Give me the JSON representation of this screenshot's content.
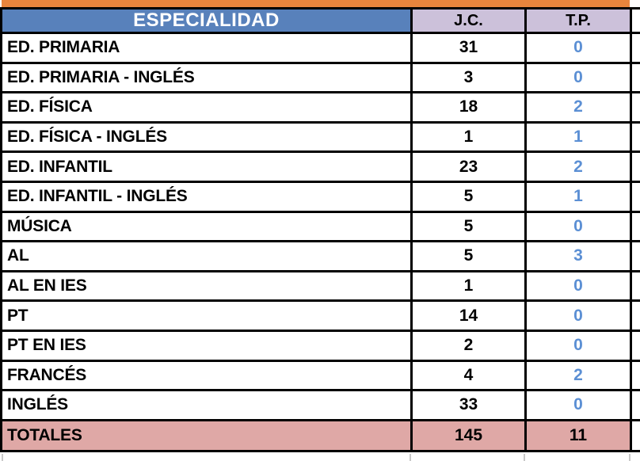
{
  "table": {
    "header": {
      "especialidad": "ESPECIALIDAD",
      "jc": "J.C.",
      "tp": "T.P."
    },
    "rows": [
      {
        "label": "ED. PRIMARIA",
        "jc": "31",
        "tp": "0"
      },
      {
        "label": "ED. PRIMARIA - INGLÉS",
        "jc": "3",
        "tp": "0"
      },
      {
        "label": "ED. FÍSICA",
        "jc": "18",
        "tp": "2"
      },
      {
        "label": "ED. FÍSICA - INGLÉS",
        "jc": "1",
        "tp": "1"
      },
      {
        "label": "ED. INFANTIL",
        "jc": "23",
        "tp": "2"
      },
      {
        "label": "ED. INFANTIL - INGLÉS",
        "jc": "5",
        "tp": "1"
      },
      {
        "label": "MÚSICA",
        "jc": "5",
        "tp": "0"
      },
      {
        "label": "AL",
        "jc": "5",
        "tp": "3"
      },
      {
        "label": "AL EN IES",
        "jc": "1",
        "tp": "0"
      },
      {
        "label": "PT",
        "jc": "14",
        "tp": "0"
      },
      {
        "label": "PT EN IES",
        "jc": "2",
        "tp": "0"
      },
      {
        "label": "FRANCÉS",
        "jc": "4",
        "tp": "2"
      },
      {
        "label": "INGLÉS",
        "jc": "33",
        "tp": "0"
      }
    ],
    "totals": {
      "label": "TOTALES",
      "jc": "145",
      "tp": "11"
    }
  },
  "colors": {
    "orange_bar": "#E8853D",
    "header_blue": "#5881BB",
    "header_lavender": "#CCC1DA",
    "totals_pink": "#DFA8A6",
    "tp_text_blue": "#5B8FD4",
    "border_black": "#000000",
    "faint_gridline": "#C9C9C9"
  }
}
